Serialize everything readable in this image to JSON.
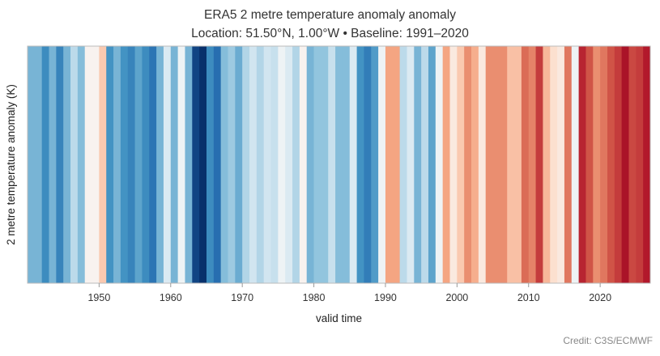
{
  "chart_data": {
    "type": "bar",
    "title": "ERA5 2 metre temperature anomaly anomaly",
    "subtitle": "Location: 51.50°N, 1.00°W • Baseline: 1991–2020",
    "xlabel": "valid time",
    "ylabel": "2 metre temperature anomaly (K)",
    "credit": "Credit: C3S/ECMWF",
    "x_ticks": [
      "1950",
      "1960",
      "1970",
      "1980",
      "1990",
      "2000",
      "2010",
      "2020"
    ],
    "x_range": [
      1940,
      2027
    ],
    "color_scale": {
      "min": -1.5,
      "max": 1.5,
      "neutral": 0
    },
    "categories": [
      1940,
      1941,
      1942,
      1943,
      1944,
      1945,
      1946,
      1947,
      1948,
      1949,
      1950,
      1951,
      1952,
      1953,
      1954,
      1955,
      1956,
      1957,
      1958,
      1959,
      1960,
      1961,
      1962,
      1963,
      1964,
      1965,
      1966,
      1967,
      1968,
      1969,
      1970,
      1971,
      1972,
      1973,
      1974,
      1975,
      1976,
      1977,
      1978,
      1979,
      1980,
      1981,
      1982,
      1983,
      1984,
      1985,
      1986,
      1987,
      1988,
      1989,
      1990,
      1991,
      1992,
      1993,
      1994,
      1995,
      1996,
      1997,
      1998,
      1999,
      2000,
      2001,
      2002,
      2003,
      2004,
      2005,
      2006,
      2007,
      2008,
      2009,
      2010,
      2011,
      2012,
      2013,
      2014,
      2015,
      2016,
      2017,
      2018,
      2019,
      2020,
      2021,
      2022,
      2023,
      2024,
      2025,
      2026
    ],
    "values": [
      -0.6,
      -0.6,
      -0.85,
      -0.6,
      -0.9,
      -0.6,
      -0.3,
      -0.55,
      0.05,
      0.05,
      0.4,
      -0.8,
      -0.6,
      -0.8,
      -0.9,
      -0.7,
      -0.85,
      -1.0,
      -0.6,
      -0.15,
      -0.6,
      -0.05,
      -0.6,
      -1.35,
      -1.55,
      -0.85,
      -1.05,
      -0.55,
      -0.45,
      -0.65,
      -0.35,
      -0.2,
      -0.35,
      -0.2,
      -0.25,
      -0.05,
      -0.15,
      -0.35,
      0.05,
      -0.6,
      -0.5,
      -0.5,
      -0.25,
      -0.55,
      -0.55,
      -0.15,
      -0.8,
      -0.95,
      -0.75,
      -0.05,
      0.6,
      0.6,
      -0.3,
      -0.15,
      -0.6,
      -0.3,
      -0.7,
      -0.05,
      0.6,
      0.15,
      0.4,
      0.7,
      0.55,
      0.15,
      0.7,
      0.7,
      0.7,
      0.45,
      0.45,
      0.85,
      0.75,
      1.05,
      0.5,
      0.25,
      0.15,
      0.8,
      -0.05,
      1.15,
      0.95,
      0.7,
      0.8,
      0.95,
      1.05,
      1.3,
      1.0,
      1.05,
      1.2
    ]
  }
}
